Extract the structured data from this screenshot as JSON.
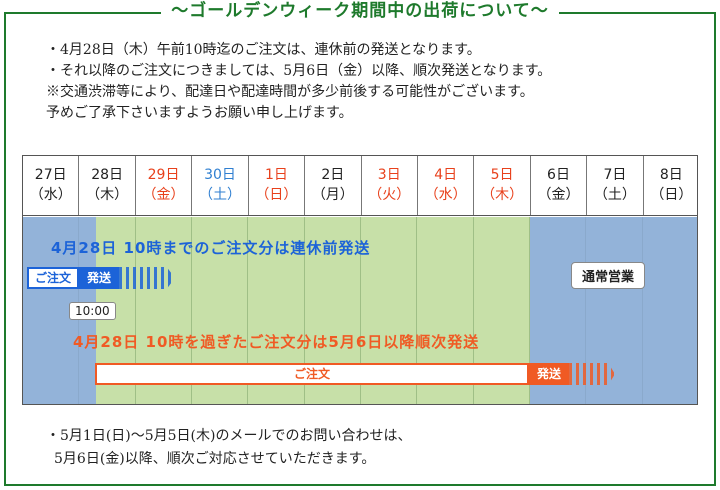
{
  "title": "～ゴールデンウィーク期間中の出荷について～",
  "notes": [
    "・4月28日（木）午前10時迄のご注文は、連休前の発送となります。",
    "・それ以降のご注文につきましては、5月6日（金）以降、順次発送となります。",
    "※交通渋滞等により、配達日や配達時間が多少前後する可能性がございます。",
    "予めご了承下さいますようお願い申し上げます。"
  ],
  "calendar": {
    "days": [
      {
        "day": "27日",
        "weekday": "（水）",
        "color": "#222222"
      },
      {
        "day": "28日",
        "weekday": "（木）",
        "color": "#222222"
      },
      {
        "day": "29日",
        "weekday": "（金）",
        "color": "#e8411c"
      },
      {
        "day": "30日",
        "weekday": "（土）",
        "color": "#2f7fd1"
      },
      {
        "day": "1日",
        "weekday": "（日）",
        "color": "#e8411c"
      },
      {
        "day": "2日",
        "weekday": "（月）",
        "color": "#222222"
      },
      {
        "day": "3日",
        "weekday": "（火）",
        "color": "#e8411c"
      },
      {
        "day": "4日",
        "weekday": "（水）",
        "color": "#e8411c"
      },
      {
        "day": "5日",
        "weekday": "（木）",
        "color": "#e8411c"
      },
      {
        "day": "6日",
        "weekday": "（金）",
        "color": "#222222"
      },
      {
        "day": "7日",
        "weekday": "（土）",
        "color": "#222222"
      },
      {
        "day": "8日",
        "weekday": "（日）",
        "color": "#222222"
      }
    ],
    "banner_before": "4月28日 10時までのご注文分は連休前発送",
    "banner_after": "4月28日 10時を過ぎたご注文分は5月6日以降順次発送",
    "order_label": "ご注文",
    "ship_label": "発送",
    "cutoff_time": "10:00",
    "normal_label": "通常営業"
  },
  "footer": [
    "・5月1日(日)～5月5日(木)のメールでのお問い合わせは、",
    "5月6日(金)以降、順次ご対応させていただきます。"
  ],
  "colors": {
    "frame": "#1e7a2c",
    "business_day": "#93b3d9",
    "holiday": "#c7e0a8",
    "before_accent": "#1c63d8",
    "after_accent": "#f05a24"
  }
}
